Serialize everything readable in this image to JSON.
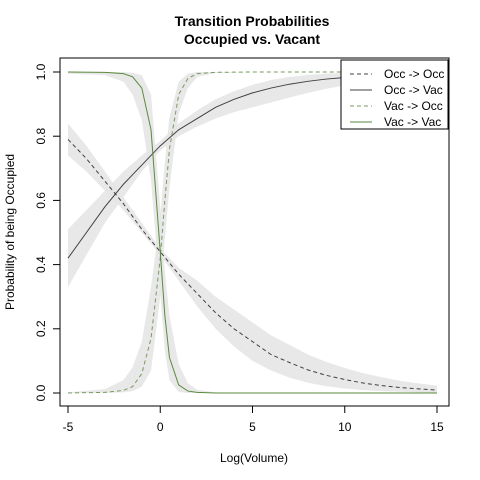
{
  "chart_data": {
    "type": "line",
    "title": "Transition Probabilities",
    "subtitle": "Occupied vs. Vacant",
    "xlabel": "Log(Volume)",
    "ylabel": "Probability of being Occupied",
    "xlim": [
      -5,
      15
    ],
    "ylim": [
      0,
      1
    ],
    "x_ticks": [
      -5,
      0,
      5,
      10,
      15
    ],
    "y_ticks": [
      0.0,
      0.2,
      0.4,
      0.6,
      0.8,
      1.0
    ],
    "x_tick_labels": [
      "-5",
      "0",
      "5",
      "10",
      "15"
    ],
    "y_tick_labels": [
      "0.0",
      "0.2",
      "0.4",
      "0.6",
      "0.8",
      "1.0"
    ],
    "legend_position": "top-right",
    "confidence_band_color": "#e6e6e6",
    "series": [
      {
        "name": "Occ -> Occ",
        "color": "#404040",
        "dash": "dashed",
        "x": [
          -5,
          -4,
          -3,
          -2,
          -1,
          0,
          1,
          2,
          3,
          4,
          5,
          6,
          7,
          8,
          9,
          10,
          11,
          12,
          13,
          14,
          15
        ],
        "y": [
          0.79,
          0.73,
          0.66,
          0.59,
          0.51,
          0.44,
          0.37,
          0.31,
          0.25,
          0.2,
          0.16,
          0.12,
          0.095,
          0.072,
          0.055,
          0.042,
          0.031,
          0.023,
          0.017,
          0.013,
          0.009
        ],
        "lower": [
          0.74,
          0.69,
          0.63,
          0.57,
          0.5,
          0.43,
          0.35,
          0.27,
          0.2,
          0.145,
          0.1,
          0.07,
          0.048,
          0.032,
          0.021,
          0.014,
          0.009,
          0.006,
          0.004,
          0.002,
          0.001
        ],
        "upper": [
          0.84,
          0.77,
          0.69,
          0.61,
          0.53,
          0.45,
          0.39,
          0.35,
          0.3,
          0.26,
          0.22,
          0.18,
          0.15,
          0.12,
          0.097,
          0.078,
          0.062,
          0.049,
          0.038,
          0.03,
          0.023
        ]
      },
      {
        "name": "Occ -> Vac",
        "color": "#404040",
        "dash": "solid",
        "x": [
          -5,
          -4,
          -3,
          -2,
          -1,
          0,
          1,
          2,
          3,
          4,
          5,
          6,
          7,
          8,
          9,
          10,
          11,
          12,
          13,
          14,
          15
        ],
        "y": [
          0.42,
          0.5,
          0.58,
          0.65,
          0.71,
          0.77,
          0.82,
          0.855,
          0.89,
          0.915,
          0.935,
          0.95,
          0.962,
          0.971,
          0.978,
          0.983,
          0.987,
          0.99,
          0.992,
          0.994,
          0.996
        ],
        "lower": [
          0.33,
          0.43,
          0.53,
          0.61,
          0.69,
          0.755,
          0.8,
          0.83,
          0.855,
          0.875,
          0.89,
          0.905,
          0.92,
          0.935,
          0.948,
          0.958,
          0.967,
          0.974,
          0.98,
          0.985,
          0.988
        ],
        "upper": [
          0.51,
          0.57,
          0.63,
          0.69,
          0.74,
          0.785,
          0.84,
          0.88,
          0.915,
          0.94,
          0.96,
          0.975,
          0.985,
          0.991,
          0.995,
          0.997,
          0.998,
          0.999,
          0.999,
          1.0,
          1.0
        ]
      },
      {
        "name": "Vac -> Occ",
        "color": "#7a9a5e",
        "dash": "dashed",
        "x": [
          -5,
          -3,
          -2,
          -1.5,
          -1,
          -0.5,
          0,
          0.25,
          0.5,
          1,
          1.5,
          2,
          3,
          5,
          8,
          10,
          15
        ],
        "y": [
          0.0,
          0.002,
          0.008,
          0.02,
          0.06,
          0.17,
          0.42,
          0.6,
          0.76,
          0.93,
          0.98,
          0.995,
          0.999,
          1.0,
          1.0,
          1.0,
          1.0
        ],
        "lower": [
          0.0,
          0.0,
          0.002,
          0.006,
          0.02,
          0.07,
          0.3,
          0.48,
          0.64,
          0.87,
          0.95,
          0.985,
          0.997,
          1.0,
          1.0,
          1.0,
          1.0
        ],
        "upper": [
          0.002,
          0.012,
          0.04,
          0.08,
          0.16,
          0.33,
          0.55,
          0.72,
          0.86,
          0.97,
          0.995,
          1.0,
          1.0,
          1.0,
          1.0,
          1.0,
          1.0
        ]
      },
      {
        "name": "Vac -> Vac",
        "color": "#5a8a3c",
        "dash": "solid",
        "x": [
          -5,
          -3,
          -2,
          -1.5,
          -1,
          -0.5,
          0,
          0.25,
          0.5,
          1,
          1.5,
          2,
          3,
          5,
          8,
          10,
          15
        ],
        "y": [
          1.0,
          0.999,
          0.995,
          0.985,
          0.95,
          0.82,
          0.44,
          0.24,
          0.11,
          0.025,
          0.006,
          0.002,
          0.0,
          0.0,
          0.0,
          0.0,
          0.0
        ],
        "lower": [
          0.995,
          0.99,
          0.97,
          0.93,
          0.85,
          0.66,
          0.31,
          0.13,
          0.04,
          0.003,
          0.0,
          0.0,
          0.0,
          0.0,
          0.0,
          0.0,
          0.0
        ],
        "upper": [
          1.0,
          1.0,
          1.0,
          0.998,
          0.99,
          0.93,
          0.58,
          0.38,
          0.24,
          0.09,
          0.03,
          0.01,
          0.002,
          0.0,
          0.0,
          0.0,
          0.0
        ]
      }
    ]
  }
}
